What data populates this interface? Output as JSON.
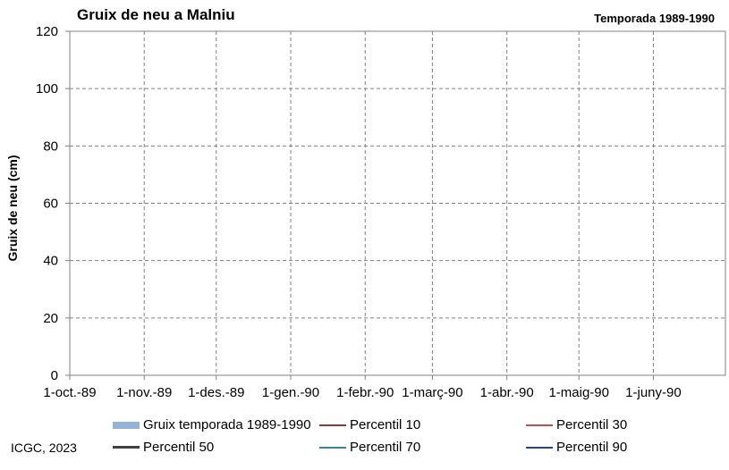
{
  "chart_data": {
    "type": "line",
    "title": "Gruix de neu a Malniu",
    "subtitle": "Temporada 1989-1990",
    "ylabel": "Gruix de neu (cm)",
    "xlabel": "",
    "ylim": [
      0,
      120
    ],
    "yticks": [
      0,
      20,
      40,
      60,
      80,
      100,
      120
    ],
    "xlim": [
      "1989-10-01",
      "1990-07-01"
    ],
    "x_ticks": [
      {
        "date": "1989-10-01",
        "label": "1-oct.-89"
      },
      {
        "date": "1989-11-01",
        "label": "1-nov.-89"
      },
      {
        "date": "1989-12-01",
        "label": "1-des.-89"
      },
      {
        "date": "1990-01-01",
        "label": "1-gen.-90"
      },
      {
        "date": "1990-02-01",
        "label": "1-febr.-90"
      },
      {
        "date": "1990-03-01",
        "label": "1-març-90"
      },
      {
        "date": "1990-04-01",
        "label": "1-abr.-90"
      },
      {
        "date": "1990-05-01",
        "label": "1-maig-90"
      },
      {
        "date": "1990-06-01",
        "label": "1-juny-90"
      }
    ],
    "grid": true,
    "legend_position": "bottom",
    "series": [
      {
        "name": "Gruix temporada 1989-1990",
        "kind": "area",
        "color": "#95b3d7",
        "values": []
      },
      {
        "name": "Percentil 10",
        "kind": "line",
        "color": "#953735",
        "values": []
      },
      {
        "name": "Percentil 30",
        "kind": "line",
        "color": "#c0504d",
        "values": []
      },
      {
        "name": "Percentil 50",
        "kind": "line",
        "color": "#404040",
        "values": []
      },
      {
        "name": "Percentil 70",
        "kind": "line",
        "color": "#31859c",
        "values": []
      },
      {
        "name": "Percentil 90",
        "kind": "line",
        "color": "#1f497d",
        "values": []
      }
    ]
  },
  "footer": {
    "credit": "ICGC, 2023"
  }
}
